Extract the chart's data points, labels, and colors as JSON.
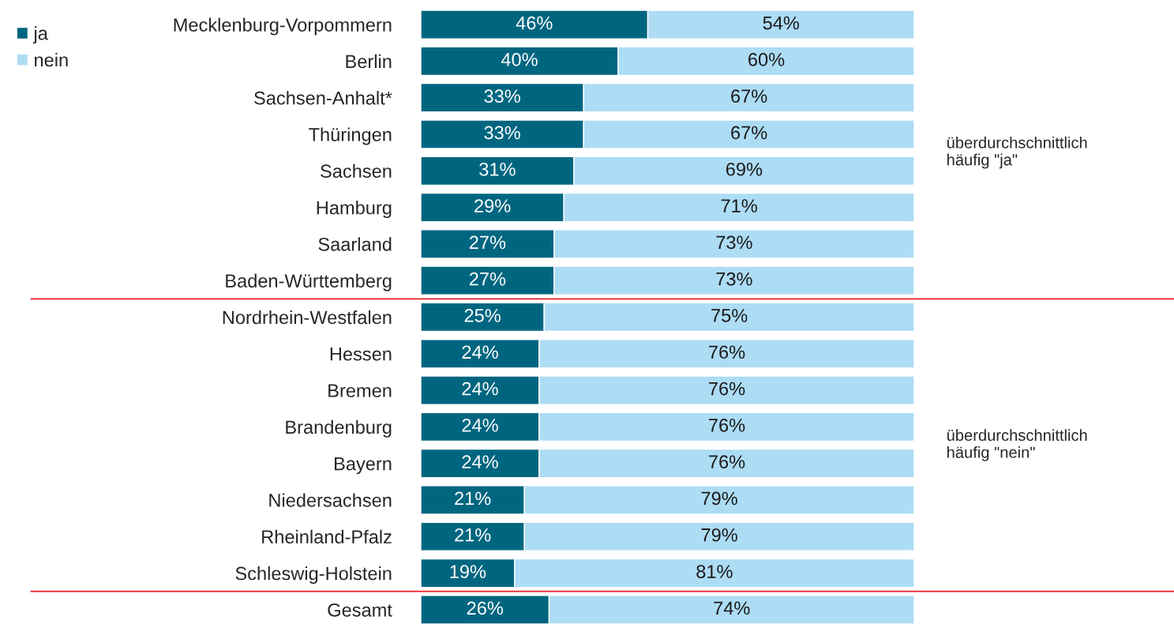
{
  "chart_data": {
    "type": "bar",
    "orientation": "horizontal",
    "stacked": true,
    "legend": "top left",
    "categories": [
      "Mecklenburg-Vorpommern",
      "Berlin",
      "Sachsen-Anhalt*",
      "Thüringen",
      "Sachsen",
      "Hamburg",
      "Saarland",
      "Baden-Württemberg",
      "Nordrhein-Westfalen",
      "Hessen",
      "Bremen",
      "Brandenburg",
      "Bayern",
      "Niedersachsen",
      "Rheinland-Pfalz",
      "Schleswig-Holstein",
      "Gesamt"
    ],
    "series": [
      {
        "name": "ja",
        "color": "#006680",
        "values": [
          46,
          40,
          33,
          33,
          31,
          29,
          27,
          27,
          25,
          24,
          24,
          24,
          24,
          21,
          21,
          19,
          26
        ],
        "value_labels": [
          "46%",
          "40%",
          "33%",
          "33%",
          "31%",
          "29%",
          "27%",
          "27%",
          "25%",
          "24%",
          "24%",
          "24%",
          "24%",
          "21%",
          "21%",
          "19%",
          "26%"
        ]
      },
      {
        "name": "nein",
        "color": "#addcf5",
        "values": [
          54,
          60,
          67,
          67,
          69,
          71,
          73,
          73,
          75,
          76,
          76,
          76,
          76,
          79,
          79,
          81,
          74
        ],
        "value_labels": [
          "54%",
          "60%",
          "67%",
          "67%",
          "69%",
          "71%",
          "73%",
          "73%",
          "75%",
          "76%",
          "76%",
          "76%",
          "76%",
          "79%",
          "79%",
          "81%",
          "74%"
        ]
      }
    ],
    "annotations": [
      "überdurchschnittlich\nhäufig \"ja\"",
      "überdurchschnittlich\nhäufig \"nein\""
    ]
  }
}
